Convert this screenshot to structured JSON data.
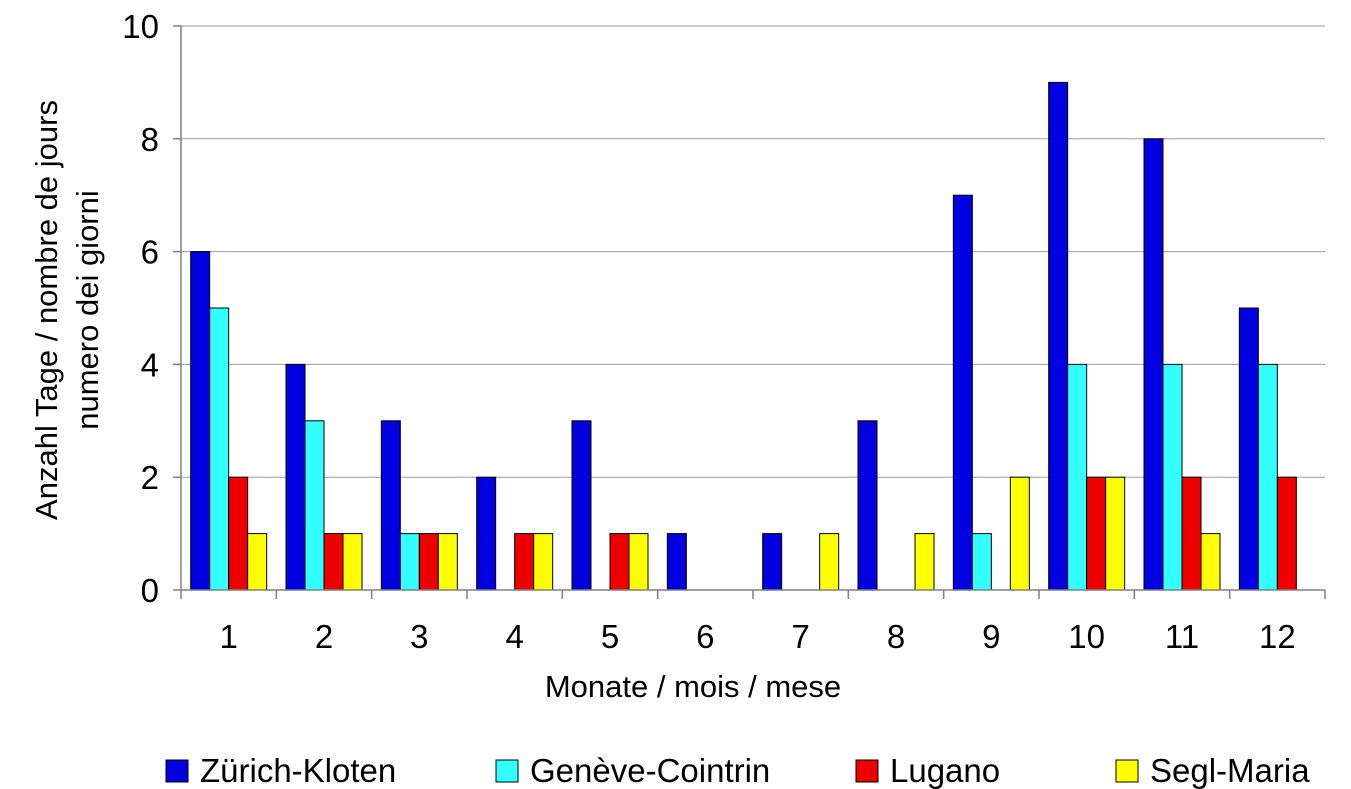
{
  "chart_data": {
    "type": "bar",
    "title": "",
    "xlabel": "Monate  /  mois  /  mese",
    "ylabel_lines": [
      "Anzahl Tage  /  nombre de jours",
      "numero dei giorni"
    ],
    "categories": [
      "1",
      "2",
      "3",
      "4",
      "5",
      "6",
      "7",
      "8",
      "9",
      "10",
      "11",
      "12"
    ],
    "ylim": [
      0,
      10
    ],
    "yticks": [
      "0",
      "2",
      "4",
      "6",
      "8",
      "10"
    ],
    "grid": true,
    "legend_position": "bottom",
    "series": [
      {
        "name": "Zürich-Kloten",
        "color": "#0000e0",
        "values": [
          6,
          4,
          3,
          2,
          3,
          1,
          1,
          3,
          7,
          9,
          8,
          5
        ]
      },
      {
        "name": "Genève-Cointrin",
        "color": "#33ffff",
        "values": [
          5,
          3,
          1,
          0,
          0,
          0,
          0,
          0,
          1,
          4,
          4,
          4
        ]
      },
      {
        "name": "Lugano",
        "color": "#ee0000",
        "values": [
          2,
          1,
          1,
          1,
          1,
          0,
          0,
          0,
          0,
          2,
          2,
          2
        ]
      },
      {
        "name": "Segl-Maria",
        "color": "#ffff00",
        "values": [
          1,
          1,
          1,
          1,
          1,
          0,
          1,
          1,
          2,
          2,
          1,
          0
        ]
      }
    ]
  }
}
